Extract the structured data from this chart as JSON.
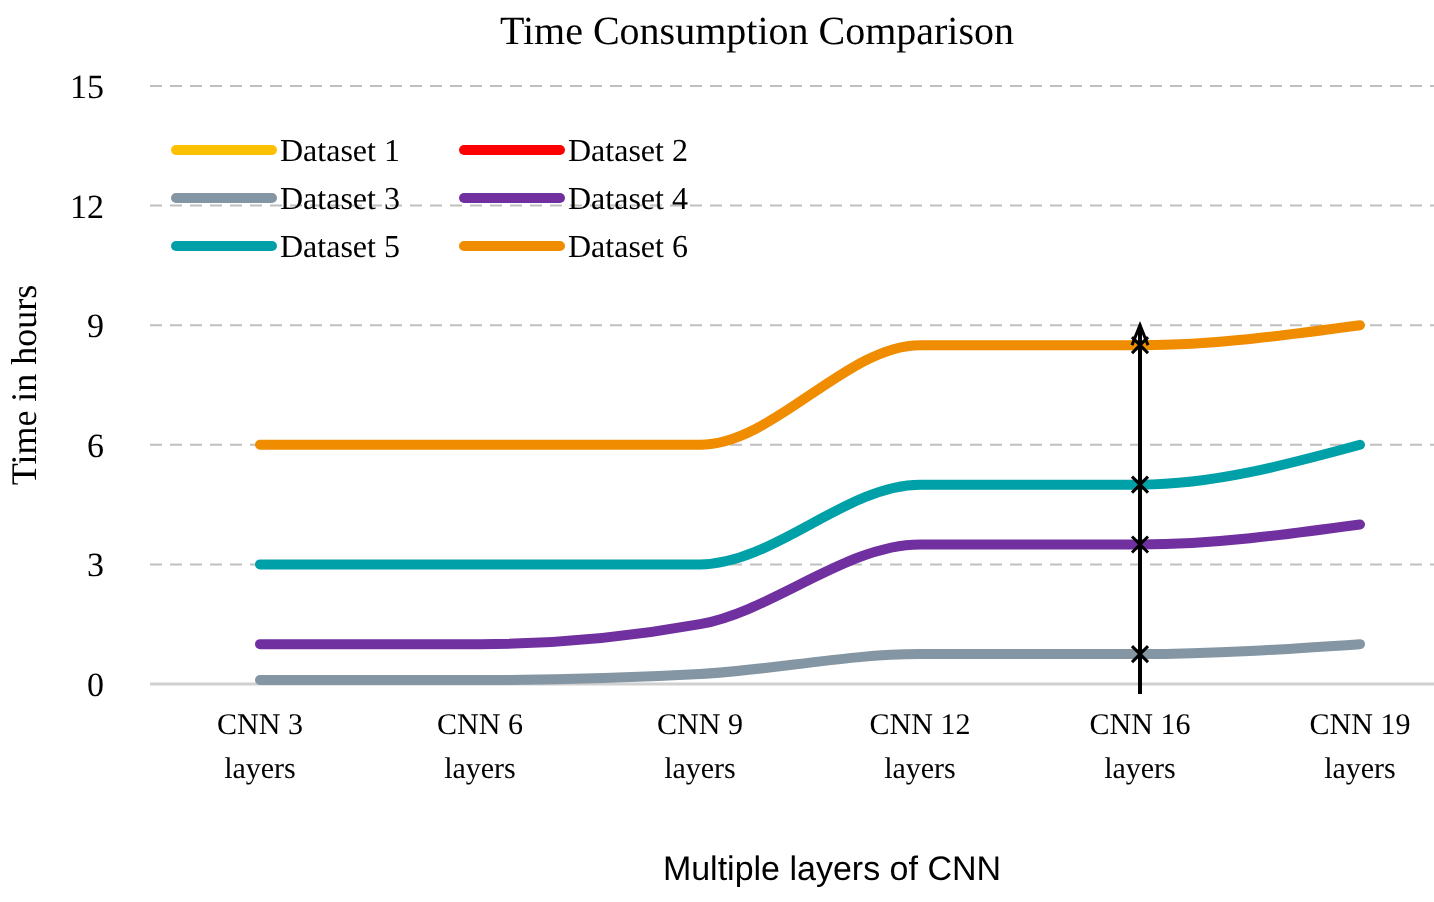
{
  "chart_data": {
    "type": "line",
    "title": "Time Consumption Comparison",
    "xlabel": "Multiple layers of CNN",
    "ylabel": "Time in hours",
    "categories": [
      "CNN 3 layers",
      "CNN 6 layers",
      "CNN 9 layers",
      "CNN 12 layers",
      "CNN 16 layers",
      "CNN 19 layers"
    ],
    "series": [
      {
        "name": "Dataset 1",
        "color": "#ffc000",
        "values": [
          null,
          null,
          null,
          null,
          null,
          null
        ]
      },
      {
        "name": "Dataset 2",
        "color": "#ff0000",
        "values": [
          null,
          null,
          null,
          null,
          null,
          null
        ]
      },
      {
        "name": "Dataset 3",
        "color": "#8496a3",
        "values": [
          0.1,
          0.1,
          0.25,
          0.75,
          0.75,
          1
        ]
      },
      {
        "name": "Dataset 4",
        "color": "#7030a0",
        "values": [
          1,
          1,
          1.5,
          3.5,
          3.5,
          4
        ]
      },
      {
        "name": "Dataset 5",
        "color": "#00a0a8",
        "values": [
          3,
          3,
          3,
          5,
          5,
          6
        ]
      },
      {
        "name": "Dataset 6",
        "color": "#f08c00",
        "values": [
          6,
          6,
          6,
          8.5,
          8.5,
          9
        ]
      }
    ],
    "ylim": [
      0,
      15
    ],
    "yticks": [
      0,
      3,
      6,
      9,
      12,
      15
    ],
    "grid": "y",
    "legend": "top left",
    "ref_lines": [
      {
        "axis": "x",
        "value": "CNN 16 layers",
        "color": "#000000"
      }
    ]
  }
}
